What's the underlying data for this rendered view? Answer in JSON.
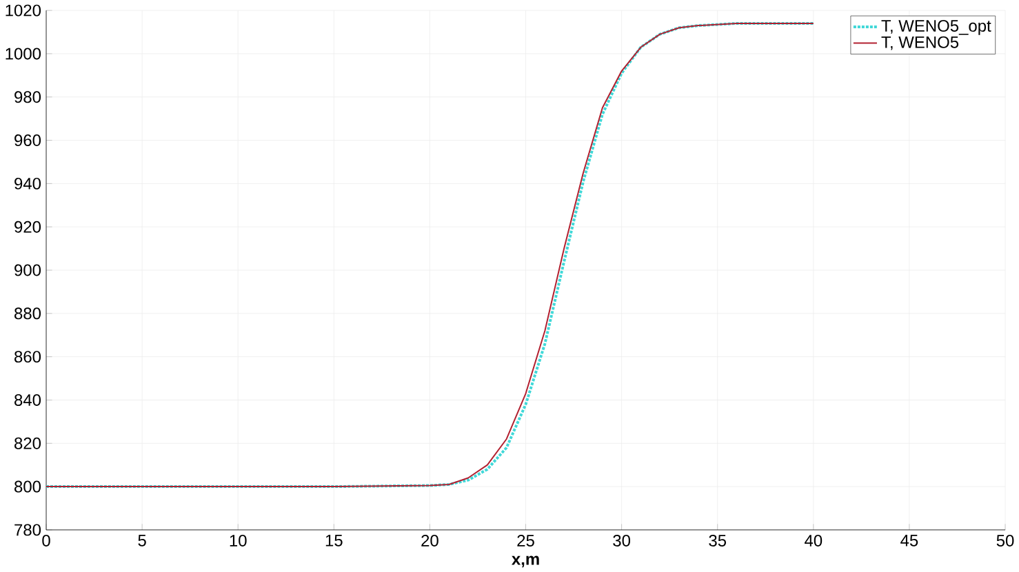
{
  "chart_data": {
    "type": "line",
    "xlabel": "x,m",
    "xlim": [
      0,
      50
    ],
    "ylim": [
      780,
      1020
    ],
    "xticks": [
      0,
      5,
      10,
      15,
      20,
      25,
      30,
      35,
      40,
      45,
      50
    ],
    "yticks": [
      780,
      800,
      820,
      840,
      860,
      880,
      900,
      920,
      940,
      960,
      980,
      1000,
      1020
    ],
    "grid": true,
    "legend": "top right",
    "x": [
      0,
      5,
      10,
      15,
      20,
      21,
      22,
      23,
      24,
      25,
      26,
      27,
      28,
      29,
      30,
      31,
      32,
      33,
      34,
      36,
      38,
      40
    ],
    "series": [
      {
        "name": "T, WENO5_opt",
        "color": "#40d8d8",
        "line_style": "dotted",
        "values": [
          800,
          800,
          800,
          800,
          800.5,
          801,
          803,
          808,
          818,
          838,
          866,
          904,
          941,
          972,
          991,
          1003,
          1009,
          1012,
          1013,
          1014,
          1014,
          1014
        ]
      },
      {
        "name": "T, WENO5",
        "color": "#b22030",
        "line_style": "solid",
        "values": [
          800,
          800,
          800,
          800,
          800.5,
          801,
          804,
          810,
          822,
          843,
          872,
          910,
          945,
          975,
          992,
          1003,
          1009,
          1012,
          1013,
          1014,
          1014,
          1014
        ]
      }
    ]
  }
}
